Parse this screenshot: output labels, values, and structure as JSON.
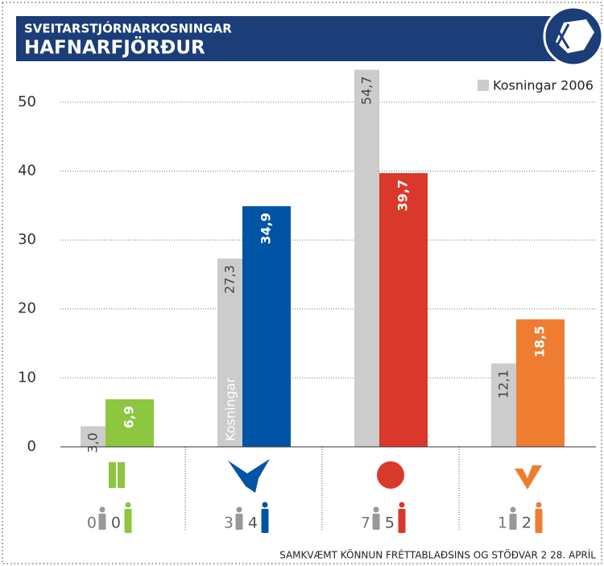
{
  "chart_data": {
    "type": "bar",
    "title": "SVEITARSTJÓRNARKOSNINGAR",
    "subtitle": "HAFNARFJÖRÐUR",
    "categories": [
      null,
      null,
      null,
      null
    ],
    "series": [
      {
        "name": "Kosningar 2006",
        "color": "#cccccc",
        "values": [
          3.0,
          27.3,
          54.7,
          12.1
        ],
        "value_labels": [
          "3,0",
          "27,3",
          "54,7",
          "12,1"
        ]
      },
      {
        "colors": [
          "#8dc63f",
          "#0054a6",
          "#d9392b",
          "#ef7d31"
        ],
        "values": [
          6.9,
          34.9,
          39.7,
          18.5
        ],
        "value_labels": [
          "6,9",
          "34,9",
          "39,7",
          "18,5"
        ]
      }
    ],
    "seats_2006": [
      0,
      3,
      7,
      1
    ],
    "seats": [
      0,
      4,
      5,
      2
    ],
    "annotation": "Kosningar",
    "source": "SAMKVÆMT KÖNNUN FRÉTTABLAÐSINS OG STÖÐVAR 2 28. APRÍL",
    "ylim": [
      0,
      55
    ],
    "yticks": [
      0,
      10,
      20,
      30,
      40,
      50
    ],
    "grid": true,
    "legend": "top-right"
  }
}
